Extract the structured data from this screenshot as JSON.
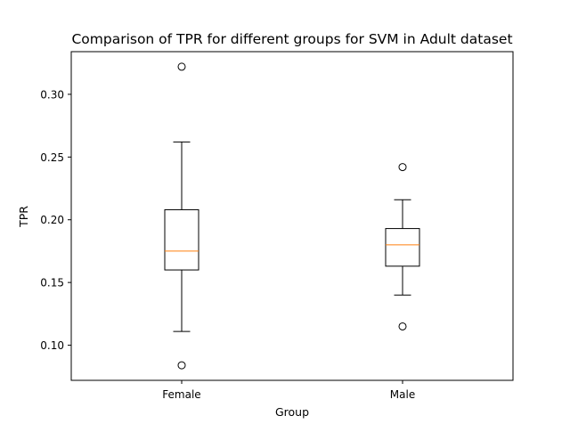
{
  "chart_data": {
    "type": "box",
    "title": "Comparison of TPR for different groups for SVM in Adult dataset",
    "xlabel": "Group",
    "ylabel": "TPR",
    "categories": [
      "Female",
      "Male"
    ],
    "ylim": [
      0.072,
      0.334
    ],
    "yticks": [
      0.1,
      0.15,
      0.2,
      0.25,
      0.3
    ],
    "ytick_labels": [
      "0.10",
      "0.15",
      "0.20",
      "0.25",
      "0.30"
    ],
    "grid": false,
    "boxes": [
      {
        "name": "Female",
        "whisker_low": 0.111,
        "q1": 0.16,
        "median": 0.175,
        "q3": 0.208,
        "whisker_high": 0.262,
        "outliers": [
          0.322,
          0.084
        ]
      },
      {
        "name": "Male",
        "whisker_low": 0.14,
        "q1": 0.163,
        "median": 0.18,
        "q3": 0.193,
        "whisker_high": 0.216,
        "outliers": [
          0.242,
          0.115
        ]
      }
    ],
    "colors": {
      "box": "#000000",
      "median": "#ff7f0e",
      "outlier": "#000000"
    }
  }
}
